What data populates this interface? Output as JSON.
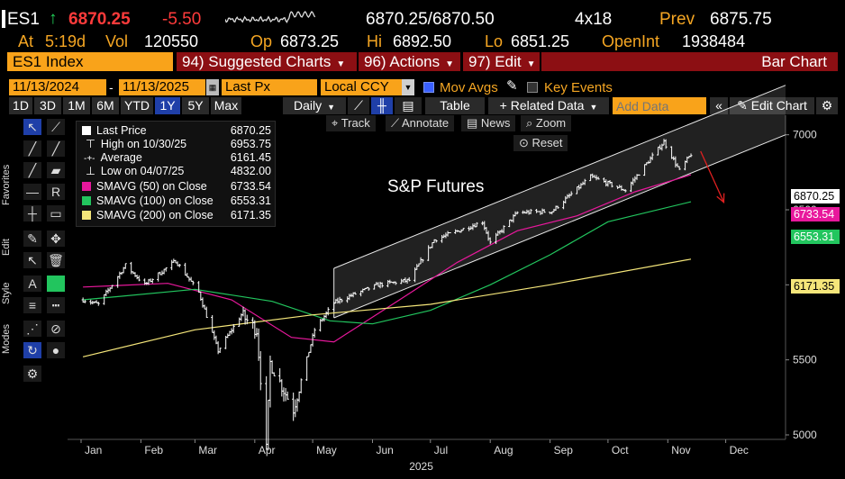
{
  "quote": {
    "ticker": "ES1",
    "direction_icon": "up-arrow-icon",
    "arrow": "↑",
    "last": "6870.25",
    "change": "-5.50",
    "bid_ask": "6870.25/6870.50",
    "size": "4x18",
    "prev_label": "Prev",
    "prev": "6875.75",
    "at_label": "At",
    "time": "5:19d",
    "vol_label": "Vol",
    "vol": "120550",
    "op_label": "Op",
    "open": "6873.25",
    "hi_label": "Hi",
    "high": "6892.50",
    "lo_label": "Lo",
    "low": "6851.25",
    "oi_label": "OpenInt",
    "open_int": "1938484"
  },
  "menubar": {
    "security": "ES1 Index",
    "suggested": "94) Suggested Charts",
    "actions": "96) Actions",
    "edit": "97) Edit",
    "chart_type": "Bar Chart"
  },
  "settings": {
    "start_date": "11/13/2024",
    "end_date": "11/13/2025",
    "field": "Last Px",
    "currency": "Local CCY",
    "mov_avgs": "Mov Avgs",
    "key_events": "Key Events"
  },
  "toolbar": {
    "periods": [
      "1D",
      "3D",
      "1M",
      "6M",
      "YTD",
      "1Y",
      "5Y",
      "Max"
    ],
    "selected_period": "1Y",
    "frequency": "Daily",
    "table": "Table",
    "related": "+ Related Data",
    "add_data_placeholder": "Add Data",
    "edit_chart": "Edit Chart"
  },
  "sidebar": {
    "favorites": "Favorites",
    "edit": "Edit",
    "style": "Style",
    "modes": "Modes"
  },
  "chart_controls": {
    "track": "Track",
    "annotate": "Annotate",
    "news": "News",
    "zoom": "Zoom",
    "reset": "Reset"
  },
  "legend": {
    "last_label": "Last Price",
    "last_value": "6870.25",
    "high_label": "High on 10/30/25",
    "high_value": "6953.75",
    "avg_label": "Average",
    "avg_value": "6161.45",
    "low_label": "Low on 04/07/25",
    "low_value": "4832.00",
    "sma50_label": "SMAVG (50)  on Close",
    "sma50_value": "6733.54",
    "sma100_label": "SMAVG (100)  on Close",
    "sma100_value": "6553.31",
    "sma200_label": "SMAVG (200)  on Close",
    "sma200_value": "6171.35"
  },
  "price_tags": {
    "last": "6870.25",
    "sma50": "6733.54",
    "sma100": "6553.31",
    "sma200": "6171.35"
  },
  "colors": {
    "price": "#ffffff",
    "sma50": "#e8189c",
    "sma100": "#22c55e",
    "sma200": "#f5e67a",
    "annotation_arrow": "#e02020",
    "channel": "#ffffff"
  },
  "chart_data": {
    "type": "bar",
    "title": "S&P Futures",
    "x_ticks": [
      "Jan",
      "Feb",
      "Mar",
      "Apr",
      "May",
      "Jun",
      "Jul",
      "Aug",
      "Sep",
      "Oct",
      "Nov",
      "Dec"
    ],
    "x_year": "2025",
    "y_ticks": [
      5000,
      5500,
      6000,
      6500,
      7000
    ],
    "ylim": [
      4970,
      7130
    ],
    "x_range": [
      "2024-12-25",
      "2026-01-01"
    ],
    "price_path": [
      [
        "2025-01-02",
        5900
      ],
      [
        "2025-01-10",
        5870
      ],
      [
        "2025-01-24",
        6130
      ],
      [
        "2025-02-03",
        6000
      ],
      [
        "2025-02-19",
        6160
      ],
      [
        "2025-03-03",
        5950
      ],
      [
        "2025-03-13",
        5560
      ],
      [
        "2025-03-25",
        5800
      ],
      [
        "2025-04-02",
        5700
      ],
      [
        "2025-04-07",
        4900
      ],
      [
        "2025-04-09",
        5480
      ],
      [
        "2025-04-21",
        5170
      ],
      [
        "2025-05-02",
        5700
      ],
      [
        "2025-05-12",
        5880
      ],
      [
        "2025-05-21",
        5930
      ],
      [
        "2025-06-04",
        6000
      ],
      [
        "2025-06-20",
        6030
      ],
      [
        "2025-07-03",
        6300
      ],
      [
        "2025-07-28",
        6420
      ],
      [
        "2025-08-01",
        6280
      ],
      [
        "2025-08-15",
        6480
      ],
      [
        "2025-09-02",
        6490
      ],
      [
        "2025-09-22",
        6720
      ],
      [
        "2025-10-10",
        6630
      ],
      [
        "2025-10-30",
        6953.75
      ],
      [
        "2025-11-07",
        6760
      ],
      [
        "2025-11-13",
        6870.25
      ]
    ],
    "moving_averages": [
      {
        "name": "SMAVG (50)",
        "points": [
          [
            "2025-01-02",
            5985
          ],
          [
            "2025-02-15",
            6010
          ],
          [
            "2025-03-20",
            5900
          ],
          [
            "2025-04-20",
            5650
          ],
          [
            "2025-05-12",
            5620
          ],
          [
            "2025-06-15",
            5900
          ],
          [
            "2025-07-15",
            6150
          ],
          [
            "2025-08-15",
            6360
          ],
          [
            "2025-09-15",
            6460
          ],
          [
            "2025-10-15",
            6620
          ],
          [
            "2025-11-13",
            6733.54
          ]
        ]
      },
      {
        "name": "SMAVG (100)",
        "points": [
          [
            "2025-01-02",
            5900
          ],
          [
            "2025-03-01",
            5970
          ],
          [
            "2025-04-10",
            5890
          ],
          [
            "2025-05-10",
            5760
          ],
          [
            "2025-06-01",
            5740
          ],
          [
            "2025-07-01",
            5830
          ],
          [
            "2025-08-01",
            6000
          ],
          [
            "2025-09-01",
            6200
          ],
          [
            "2025-10-01",
            6420
          ],
          [
            "2025-11-13",
            6553.31
          ]
        ]
      },
      {
        "name": "SMAVG (200)",
        "points": [
          [
            "2025-01-02",
            5520
          ],
          [
            "2025-03-01",
            5700
          ],
          [
            "2025-05-01",
            5800
          ],
          [
            "2025-07-01",
            5870
          ],
          [
            "2025-09-01",
            6000
          ],
          [
            "2025-11-13",
            6171.35
          ]
        ]
      }
    ],
    "channel": {
      "upper": [
        [
          "2025-05-12",
          6110
        ],
        [
          "2026-01-01",
          7330
        ]
      ],
      "lower": [
        [
          "2025-05-12",
          5780
        ],
        [
          "2026-01-01",
          7000
        ]
      ]
    },
    "arrow": [
      [
        "2025-11-18",
        6890
      ],
      [
        "2025-11-30",
        6550
      ]
    ]
  }
}
